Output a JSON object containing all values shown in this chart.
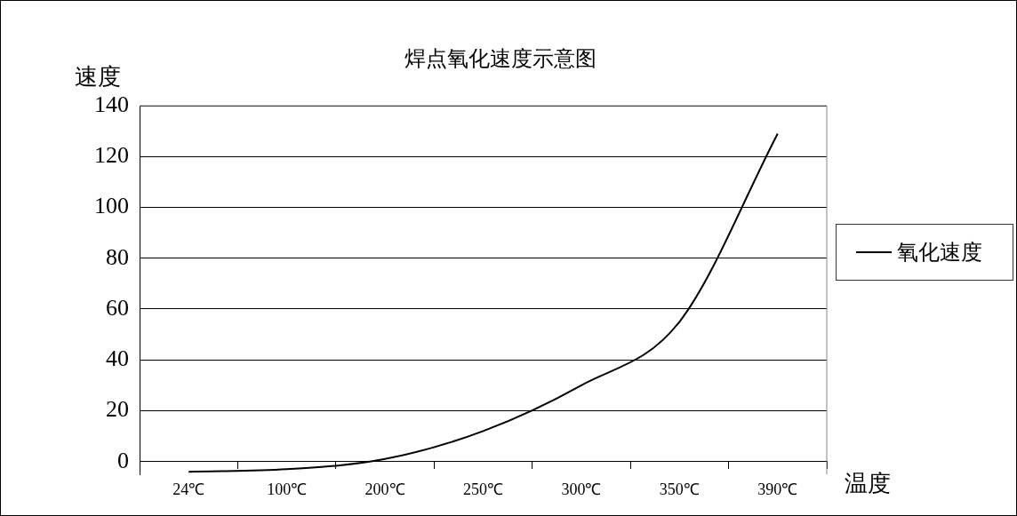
{
  "chart_data": {
    "type": "line",
    "title": "焊点氧化速度示意图",
    "xlabel": "温度",
    "ylabel": "速度",
    "categories": [
      "24℃",
      "100℃",
      "200℃",
      "250℃",
      "300℃",
      "350℃",
      "390℃"
    ],
    "series": [
      {
        "name": "氧化速度",
        "color": "#000000",
        "values": [
          -4,
          -3,
          1,
          12,
          30,
          55,
          129
        ]
      }
    ],
    "ylim": [
      -5,
      140
    ],
    "yticks": [
      0,
      20,
      40,
      60,
      80,
      100,
      120,
      140
    ],
    "grid": "y",
    "legend": "right",
    "marker": "none",
    "line_style": "solid"
  }
}
